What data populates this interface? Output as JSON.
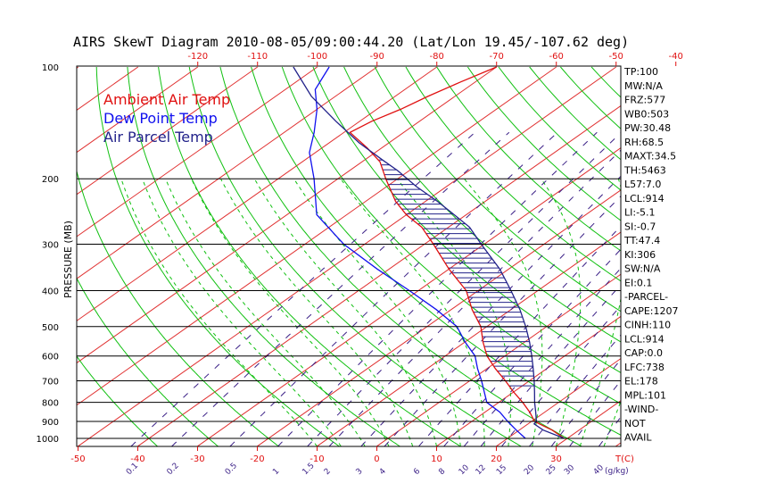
{
  "chart_data": {
    "type": "line",
    "title": "AIRS SkewT Diagram 2010-08-05/09:00:44.20 (Lat/Lon 19.45/-107.62 deg)",
    "ylabel": "PRESSURE (MB)",
    "xlabel": "T(C)",
    "mixing_ratio_unit": "(g/kg)",
    "log_pressure_axis": true,
    "ylim": [
      1050,
      100
    ],
    "pressure_levels": [
      100,
      200,
      300,
      400,
      500,
      600,
      700,
      800,
      900,
      1000
    ],
    "bottom_temp_ticks": [
      -50,
      -40,
      -30,
      -20,
      -10,
      0,
      10,
      20,
      30
    ],
    "top_temp_ticks": [
      -120,
      -110,
      -100,
      -90,
      -80,
      -70,
      -60,
      -50,
      -40
    ],
    "mixing_ratio_labels": [
      "0.1",
      "0.2",
      "0.5",
      "1",
      "1.5",
      "2",
      "3",
      "4",
      "6",
      "8",
      "10",
      "12",
      "15",
      "20",
      "25",
      "30",
      "40"
    ],
    "legend": [
      {
        "name": "Ambient Air Temp",
        "color": "#e01010"
      },
      {
        "name": "Dew Point Temp",
        "color": "#1010ee"
      },
      {
        "name": "Air Parcel Temp",
        "color": "#22228a"
      }
    ],
    "series": [
      {
        "name": "Ambient Air Temp",
        "color": "#e01010",
        "points": [
          [
            1000,
            29.5
          ],
          [
            950,
            25.5
          ],
          [
            925,
            23.0
          ],
          [
            900,
            20.5
          ],
          [
            850,
            17.5
          ],
          [
            800,
            14.0
          ],
          [
            750,
            10.0
          ],
          [
            700,
            6.0
          ],
          [
            650,
            1.5
          ],
          [
            600,
            -3.0
          ],
          [
            550,
            -7.0
          ],
          [
            500,
            -11.0
          ],
          [
            450,
            -16.5
          ],
          [
            400,
            -22.0
          ],
          [
            350,
            -30.0
          ],
          [
            300,
            -38.5
          ],
          [
            270,
            -44.5
          ],
          [
            250,
            -50.0
          ],
          [
            230,
            -55.0
          ],
          [
            200,
            -62.0
          ],
          [
            180,
            -67.0
          ],
          [
            165,
            -72.5
          ],
          [
            150,
            -79.0
          ],
          [
            140,
            -78.0
          ],
          [
            130,
            -76.0
          ],
          [
            120,
            -74.5
          ],
          [
            110,
            -72.5
          ],
          [
            100,
            -70.0
          ]
        ]
      },
      {
        "name": "Dew Point Temp",
        "color": "#1010ee",
        "points": [
          [
            1000,
            23.0
          ],
          [
            950,
            19.5
          ],
          [
            900,
            16.0
          ],
          [
            850,
            12.5
          ],
          [
            800,
            8.0
          ],
          [
            700,
            2.0
          ],
          [
            650,
            -1.5
          ],
          [
            600,
            -5.0
          ],
          [
            550,
            -10.0
          ],
          [
            500,
            -15.0
          ],
          [
            450,
            -22.5
          ],
          [
            400,
            -31.5
          ],
          [
            350,
            -42.0
          ],
          [
            300,
            -53.5
          ],
          [
            250,
            -65.0
          ],
          [
            200,
            -74.0
          ],
          [
            170,
            -81.0
          ],
          [
            150,
            -85.0
          ],
          [
            130,
            -90.0
          ],
          [
            115,
            -95.0
          ],
          [
            100,
            -98.0
          ]
        ]
      },
      {
        "name": "Air Parcel Temp",
        "color": "#22228a",
        "points": [
          [
            1000,
            29.5
          ],
          [
            950,
            24.0
          ],
          [
            914,
            21.0
          ],
          [
            900,
            20.8
          ],
          [
            850,
            18.5
          ],
          [
            800,
            16.0
          ],
          [
            750,
            13.5
          ],
          [
            700,
            10.8
          ],
          [
            650,
            7.8
          ],
          [
            600,
            4.5
          ],
          [
            550,
            0.8
          ],
          [
            500,
            -3.5
          ],
          [
            450,
            -8.5
          ],
          [
            400,
            -14.5
          ],
          [
            350,
            -21.5
          ],
          [
            300,
            -30.5
          ],
          [
            270,
            -36.5
          ],
          [
            250,
            -42.0
          ],
          [
            230,
            -48.0
          ],
          [
            210,
            -55.0
          ],
          [
            190,
            -62.0
          ],
          [
            178,
            -67.0
          ],
          [
            160,
            -75.0
          ],
          [
            140,
            -84.0
          ],
          [
            120,
            -94.0
          ],
          [
            100,
            -104.0
          ]
        ]
      }
    ],
    "indices": [
      "TP:100",
      "MW:N/A",
      "FRZ:577",
      "WB0:503",
      "PW:30.48",
      "RH:68.5",
      "MAXT:34.5",
      "TH:5463",
      "L57:7.0",
      "LCL:914",
      "LI:-5.1",
      "SI:-0.7",
      "TT:47.4",
      "KI:306",
      "SW:N/A",
      "EI:0.1",
      "-PARCEL-",
      "CAPE:1207",
      "CINH:110",
      "LCL:914",
      "CAP:0.0",
      "LFC:738",
      "EL:178",
      "MPL:101",
      "-WIND-",
      "NOT",
      "AVAIL"
    ],
    "colors": {
      "isotherm": "#e03030",
      "dry_adiabat": "#10c010",
      "moist_adiabat": "#10c010",
      "mixing_ratio": "#3a1f86",
      "cape_hatch": "#22228a"
    }
  }
}
